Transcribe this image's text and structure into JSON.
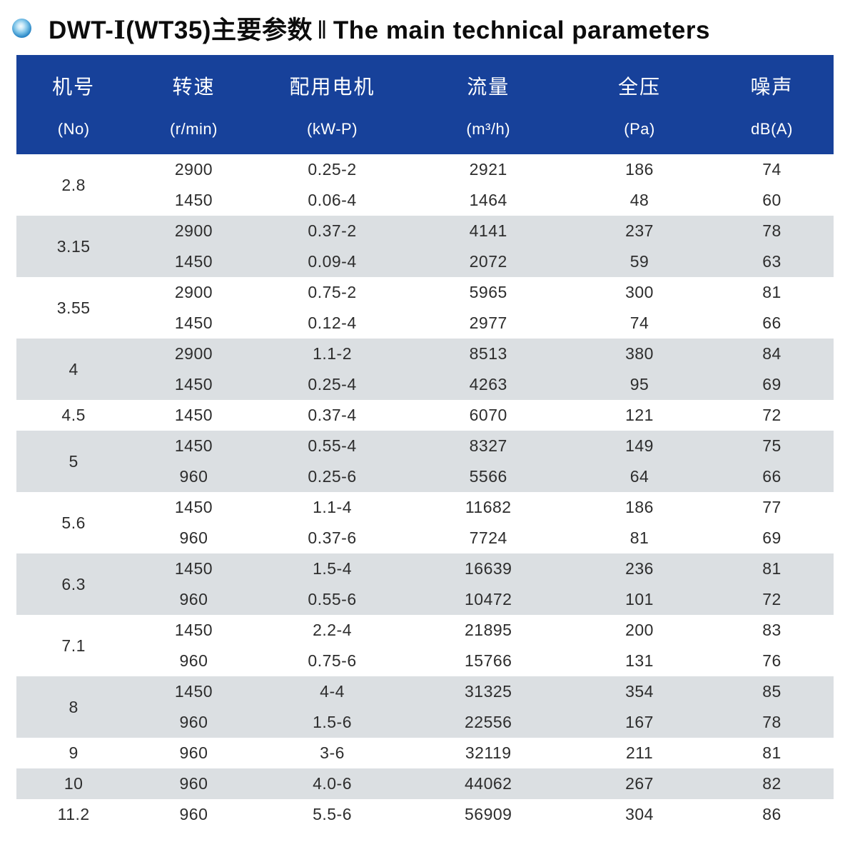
{
  "title": {
    "model_prefix": "DWT-",
    "model_numeral": "Ⅰ",
    "model_suffix": "(WT35)主要参数",
    "separator": "‖",
    "english": "The main technical parameters"
  },
  "colors": {
    "header_bg": "#17419a",
    "row_shaded_bg": "#dbdfe2",
    "row_bg": "#ffffff",
    "header_text": "#ffffff",
    "body_text": "#2d2d2d",
    "bullet_blue": "#1a6fb2"
  },
  "icons": {
    "bullet": "blue-sphere-bullet-icon"
  },
  "table": {
    "columns": [
      {
        "key": "no",
        "zh": "机号",
        "en": "(No)"
      },
      {
        "key": "speed",
        "zh": "转速",
        "en": "(r/min)"
      },
      {
        "key": "motor",
        "zh": "配用电机",
        "en": "(kW-P)"
      },
      {
        "key": "flow",
        "zh": "流量",
        "en": "(m³/h)"
      },
      {
        "key": "pressure",
        "zh": "全压",
        "en": "(Pa)"
      },
      {
        "key": "noise",
        "zh": "噪声",
        "en": "dB(A)"
      }
    ],
    "groups": [
      {
        "no": "2.8",
        "rows": [
          [
            "2900",
            "0.25-2",
            "2921",
            "186",
            "74"
          ],
          [
            "1450",
            "0.06-4",
            "1464",
            "48",
            "60"
          ]
        ]
      },
      {
        "no": "3.15",
        "rows": [
          [
            "2900",
            "0.37-2",
            "4141",
            "237",
            "78"
          ],
          [
            "1450",
            "0.09-4",
            "2072",
            "59",
            "63"
          ]
        ]
      },
      {
        "no": "3.55",
        "rows": [
          [
            "2900",
            "0.75-2",
            "5965",
            "300",
            "81"
          ],
          [
            "1450",
            "0.12-4",
            "2977",
            "74",
            "66"
          ]
        ]
      },
      {
        "no": "4",
        "rows": [
          [
            "2900",
            "1.1-2",
            "8513",
            "380",
            "84"
          ],
          [
            "1450",
            "0.25-4",
            "4263",
            "95",
            "69"
          ]
        ]
      },
      {
        "no": "4.5",
        "rows": [
          [
            "1450",
            "0.37-4",
            "6070",
            "121",
            "72"
          ]
        ]
      },
      {
        "no": "5",
        "rows": [
          [
            "1450",
            "0.55-4",
            "8327",
            "149",
            "75"
          ],
          [
            "960",
            "0.25-6",
            "5566",
            "64",
            "66"
          ]
        ]
      },
      {
        "no": "5.6",
        "rows": [
          [
            "1450",
            "1.1-4",
            "11682",
            "186",
            "77"
          ],
          [
            "960",
            "0.37-6",
            "7724",
            "81",
            "69"
          ]
        ]
      },
      {
        "no": "6.3",
        "rows": [
          [
            "1450",
            "1.5-4",
            "16639",
            "236",
            "81"
          ],
          [
            "960",
            "0.55-6",
            "10472",
            "101",
            "72"
          ]
        ]
      },
      {
        "no": "7.1",
        "rows": [
          [
            "1450",
            "2.2-4",
            "21895",
            "200",
            "83"
          ],
          [
            "960",
            "0.75-6",
            "15766",
            "131",
            "76"
          ]
        ]
      },
      {
        "no": "8",
        "rows": [
          [
            "1450",
            "4-4",
            "31325",
            "354",
            "85"
          ],
          [
            "960",
            "1.5-6",
            "22556",
            "167",
            "78"
          ]
        ]
      },
      {
        "no": "9",
        "rows": [
          [
            "960",
            "3-6",
            "32119",
            "211",
            "81"
          ]
        ]
      },
      {
        "no": "10",
        "rows": [
          [
            "960",
            "4.0-6",
            "44062",
            "267",
            "82"
          ]
        ]
      },
      {
        "no": "11.2",
        "rows": [
          [
            "960",
            "5.5-6",
            "56909",
            "304",
            "86"
          ]
        ]
      }
    ]
  }
}
